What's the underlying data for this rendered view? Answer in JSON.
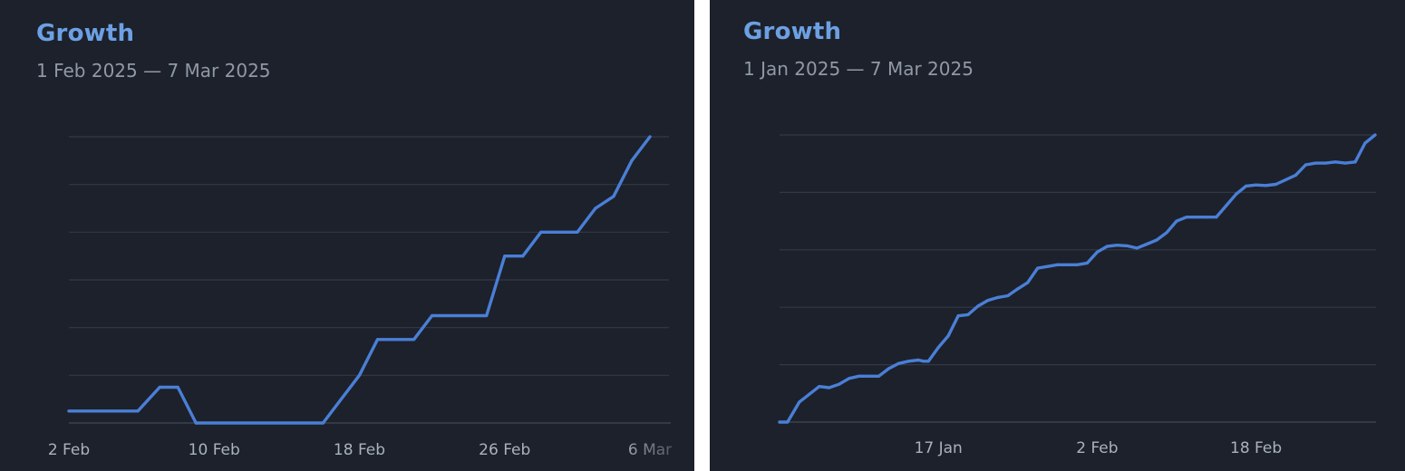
{
  "colors": {
    "background": "#1c212b",
    "gap": "#ffffff",
    "title": "#6da0e3",
    "subtitle": "#9099a6",
    "line": "#4a7fd6",
    "grid": "#323946",
    "tick_label": "#aab2be"
  },
  "chart_data": [
    {
      "type": "line",
      "title": "Growth",
      "subtitle": "1 Feb 2025 — 7 Mar 2025",
      "xlabel": "",
      "ylabel": "",
      "grid": true,
      "x_ticks": [
        "2 Feb",
        "10 Feb",
        "18 Feb",
        "26 Feb",
        "6 Mar"
      ],
      "x_tick_positions": [
        2,
        10,
        18,
        26,
        34
      ],
      "x_range": [
        2,
        34
      ],
      "y_range": [
        0,
        12
      ],
      "y_gridlines": [
        2,
        4,
        6,
        8,
        10,
        12
      ],
      "series": [
        {
          "x": [
            2,
            5.8,
            7,
            8,
            9,
            16,
            18,
            19,
            21,
            22,
            25,
            26,
            27,
            28,
            30,
            31,
            32,
            33,
            34
          ],
          "y": [
            0.5,
            0.5,
            1.5,
            1.5,
            0,
            0,
            2,
            3.5,
            3.5,
            4.5,
            4.5,
            7,
            7,
            8,
            8,
            9,
            9.5,
            11,
            12
          ]
        }
      ]
    },
    {
      "type": "line",
      "title": "Growth",
      "subtitle": "1 Jan 2025 — 7 Mar 2025",
      "xlabel": "",
      "ylabel": "",
      "grid": true,
      "x_ticks": [
        "17 Jan",
        "2 Feb",
        "18 Feb"
      ],
      "x_tick_positions": [
        17,
        33,
        49
      ],
      "x_range": [
        1,
        61
      ],
      "y_range": [
        0,
        5
      ],
      "y_gridlines": [
        1,
        2,
        3,
        4,
        5
      ],
      "series": [
        {
          "x": [
            1,
            1.8,
            3,
            5,
            6,
            7,
            8,
            9,
            10,
            11,
            12,
            13,
            14,
            15,
            15.5,
            16,
            17,
            18,
            19,
            20,
            21,
            22,
            23,
            24,
            25,
            26,
            27,
            28,
            29,
            30,
            31,
            32,
            33,
            34,
            35,
            36,
            37,
            38,
            39,
            40,
            41,
            42,
            43,
            44,
            45,
            46,
            47,
            48,
            49,
            50,
            51,
            52,
            53,
            54,
            55,
            56,
            57,
            58,
            59,
            60,
            61
          ],
          "y": [
            0,
            0,
            0.35,
            0.62,
            0.6,
            0.66,
            0.76,
            0.8,
            0.8,
            0.8,
            0.93,
            1.02,
            1.06,
            1.08,
            1.06,
            1.06,
            1.3,
            1.5,
            1.85,
            1.87,
            2.02,
            2.12,
            2.17,
            2.2,
            2.32,
            2.43,
            2.68,
            2.71,
            2.74,
            2.74,
            2.74,
            2.77,
            2.96,
            3.06,
            3.08,
            3.07,
            3.03,
            3.1,
            3.17,
            3.3,
            3.5,
            3.57,
            3.57,
            3.57,
            3.57,
            3.77,
            3.97,
            4.11,
            4.13,
            4.12,
            4.14,
            4.22,
            4.3,
            4.48,
            4.51,
            4.51,
            4.53,
            4.51,
            4.53,
            4.86,
            5
          ]
        }
      ]
    }
  ]
}
